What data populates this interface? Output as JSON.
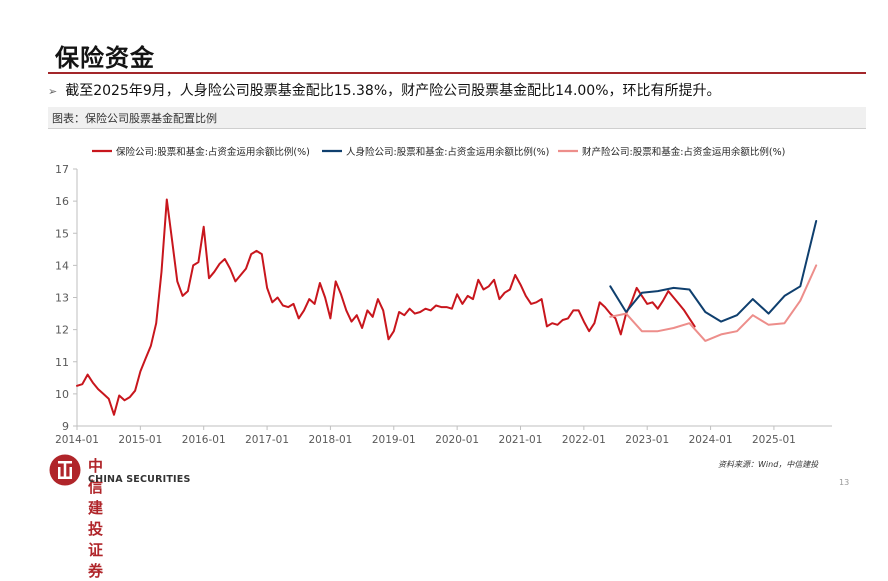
{
  "page": {
    "title": "保险资金",
    "bullet_text": "截至2025年9月，人身险公司股票基金配比15.38%，财产险公司股票基金配比14.00%，环比有所提升。",
    "caption": "图表：保险公司股票基金配置比例",
    "source": "资料来源：Wind，中信建投",
    "page_number": "13",
    "logo_cn": "中信建投证券",
    "logo_en": "CHINA SECURITIES",
    "accent_color": "#a3262a"
  },
  "chart_data": {
    "type": "line",
    "title": "",
    "xlabel": "",
    "ylabel": "",
    "ylim": [
      9,
      17
    ],
    "yticks": [
      "9",
      "10",
      "11",
      "12",
      "13",
      "14",
      "15",
      "16",
      "17"
    ],
    "xlim": [
      "2014-01",
      "2025-12"
    ],
    "xticks": [
      "2014-01",
      "2015-01",
      "2016-01",
      "2017-01",
      "2018-01",
      "2019-01",
      "2020-01",
      "2021-01",
      "2022-01",
      "2023-01",
      "2024-01",
      "2025-01"
    ],
    "grid": false,
    "legend": "top",
    "series": [
      {
        "name": "保险公司:股票和基金:占资金运用余额比例(%)",
        "color": "#c8161d",
        "points": [
          [
            "2014-01",
            10.25
          ],
          [
            "2014-02",
            10.3
          ],
          [
            "2014-03",
            10.6
          ],
          [
            "2014-04",
            10.35
          ],
          [
            "2014-05",
            10.15
          ],
          [
            "2014-06",
            10.0
          ],
          [
            "2014-07",
            9.85
          ],
          [
            "2014-08",
            9.35
          ],
          [
            "2014-09",
            9.95
          ],
          [
            "2014-10",
            9.8
          ],
          [
            "2014-11",
            9.9
          ],
          [
            "2014-12",
            10.1
          ],
          [
            "2015-01",
            10.7
          ],
          [
            "2015-02",
            11.1
          ],
          [
            "2015-03",
            11.5
          ],
          [
            "2015-04",
            12.2
          ],
          [
            "2015-05",
            13.8
          ],
          [
            "2015-06",
            16.05
          ],
          [
            "2015-07",
            14.8
          ],
          [
            "2015-08",
            13.5
          ],
          [
            "2015-09",
            13.05
          ],
          [
            "2015-10",
            13.2
          ],
          [
            "2015-11",
            14.0
          ],
          [
            "2015-12",
            14.1
          ],
          [
            "2016-01",
            15.2
          ],
          [
            "2016-02",
            13.6
          ],
          [
            "2016-03",
            13.8
          ],
          [
            "2016-04",
            14.05
          ],
          [
            "2016-05",
            14.2
          ],
          [
            "2016-06",
            13.9
          ],
          [
            "2016-07",
            13.5
          ],
          [
            "2016-08",
            13.7
          ],
          [
            "2016-09",
            13.9
          ],
          [
            "2016-10",
            14.35
          ],
          [
            "2016-11",
            14.45
          ],
          [
            "2016-12",
            14.35
          ],
          [
            "2017-01",
            13.3
          ],
          [
            "2017-02",
            12.85
          ],
          [
            "2017-03",
            13.0
          ],
          [
            "2017-04",
            12.75
          ],
          [
            "2017-05",
            12.7
          ],
          [
            "2017-06",
            12.8
          ],
          [
            "2017-07",
            12.35
          ],
          [
            "2017-08",
            12.6
          ],
          [
            "2017-09",
            12.95
          ],
          [
            "2017-10",
            12.8
          ],
          [
            "2017-11",
            13.45
          ],
          [
            "2017-12",
            13.0
          ],
          [
            "2018-01",
            12.35
          ],
          [
            "2018-02",
            13.5
          ],
          [
            "2018-03",
            13.1
          ],
          [
            "2018-04",
            12.6
          ],
          [
            "2018-05",
            12.25
          ],
          [
            "2018-06",
            12.45
          ],
          [
            "2018-07",
            12.05
          ],
          [
            "2018-08",
            12.6
          ],
          [
            "2018-09",
            12.4
          ],
          [
            "2018-10",
            12.95
          ],
          [
            "2018-11",
            12.6
          ],
          [
            "2018-12",
            11.7
          ],
          [
            "2019-01",
            11.95
          ],
          [
            "2019-02",
            12.55
          ],
          [
            "2019-03",
            12.45
          ],
          [
            "2019-04",
            12.65
          ],
          [
            "2019-05",
            12.5
          ],
          [
            "2019-06",
            12.55
          ],
          [
            "2019-07",
            12.65
          ],
          [
            "2019-08",
            12.6
          ],
          [
            "2019-09",
            12.75
          ],
          [
            "2019-10",
            12.7
          ],
          [
            "2019-11",
            12.7
          ],
          [
            "2019-12",
            12.65
          ],
          [
            "2020-01",
            13.1
          ],
          [
            "2020-02",
            12.8
          ],
          [
            "2020-03",
            13.05
          ],
          [
            "2020-04",
            12.95
          ],
          [
            "2020-05",
            13.55
          ],
          [
            "2020-06",
            13.25
          ],
          [
            "2020-07",
            13.35
          ],
          [
            "2020-08",
            13.55
          ],
          [
            "2020-09",
            12.95
          ],
          [
            "2020-10",
            13.15
          ],
          [
            "2020-11",
            13.25
          ],
          [
            "2020-12",
            13.7
          ],
          [
            "2021-01",
            13.4
          ],
          [
            "2021-02",
            13.05
          ],
          [
            "2021-03",
            12.8
          ],
          [
            "2021-04",
            12.85
          ],
          [
            "2021-05",
            12.95
          ],
          [
            "2021-06",
            12.1
          ],
          [
            "2021-07",
            12.2
          ],
          [
            "2021-08",
            12.15
          ],
          [
            "2021-09",
            12.3
          ],
          [
            "2021-10",
            12.35
          ],
          [
            "2021-11",
            12.6
          ],
          [
            "2021-12",
            12.6
          ],
          [
            "2022-01",
            12.25
          ],
          [
            "2022-02",
            11.95
          ],
          [
            "2022-03",
            12.2
          ],
          [
            "2022-04",
            12.85
          ],
          [
            "2022-05",
            12.7
          ],
          [
            "2022-06",
            12.5
          ],
          [
            "2022-07",
            12.35
          ],
          [
            "2022-08",
            11.85
          ],
          [
            "2022-09",
            12.5
          ],
          [
            "2022-10",
            12.85
          ],
          [
            "2022-11",
            13.3
          ],
          [
            "2022-12",
            13.05
          ],
          [
            "2023-01",
            12.8
          ],
          [
            "2023-02",
            12.85
          ],
          [
            "2023-03",
            12.65
          ],
          [
            "2023-04",
            12.9
          ],
          [
            "2023-05",
            13.2
          ],
          [
            "2023-06",
            13.0
          ],
          [
            "2023-07",
            12.8
          ],
          [
            "2023-08",
            12.6
          ],
          [
            "2023-09",
            12.35
          ],
          [
            "2023-10",
            12.1
          ]
        ]
      },
      {
        "name": "人身险公司:股票和基金:占资金运用余额比例(%)",
        "color": "#0f3f6e",
        "points": [
          [
            "2022-06",
            13.35
          ],
          [
            "2022-09",
            12.55
          ],
          [
            "2022-12",
            13.15
          ],
          [
            "2023-03",
            13.2
          ],
          [
            "2023-06",
            13.3
          ],
          [
            "2023-09",
            13.25
          ],
          [
            "2023-12",
            12.55
          ],
          [
            "2024-03",
            12.25
          ],
          [
            "2024-06",
            12.45
          ],
          [
            "2024-09",
            12.95
          ],
          [
            "2024-12",
            12.5
          ],
          [
            "2025-03",
            13.05
          ],
          [
            "2025-06",
            13.35
          ],
          [
            "2025-09",
            15.38
          ]
        ]
      },
      {
        "name": "财产险公司:股票和基金:占资金运用余额比例(%)",
        "color": "#ed8e8b",
        "points": [
          [
            "2022-06",
            12.4
          ],
          [
            "2022-09",
            12.5
          ],
          [
            "2022-12",
            11.95
          ],
          [
            "2023-03",
            11.95
          ],
          [
            "2023-06",
            12.05
          ],
          [
            "2023-09",
            12.2
          ],
          [
            "2023-12",
            11.65
          ],
          [
            "2024-03",
            11.85
          ],
          [
            "2024-06",
            11.95
          ],
          [
            "2024-09",
            12.45
          ],
          [
            "2024-12",
            12.15
          ],
          [
            "2025-03",
            12.2
          ],
          [
            "2025-06",
            12.9
          ],
          [
            "2025-09",
            14.0
          ]
        ]
      }
    ]
  }
}
